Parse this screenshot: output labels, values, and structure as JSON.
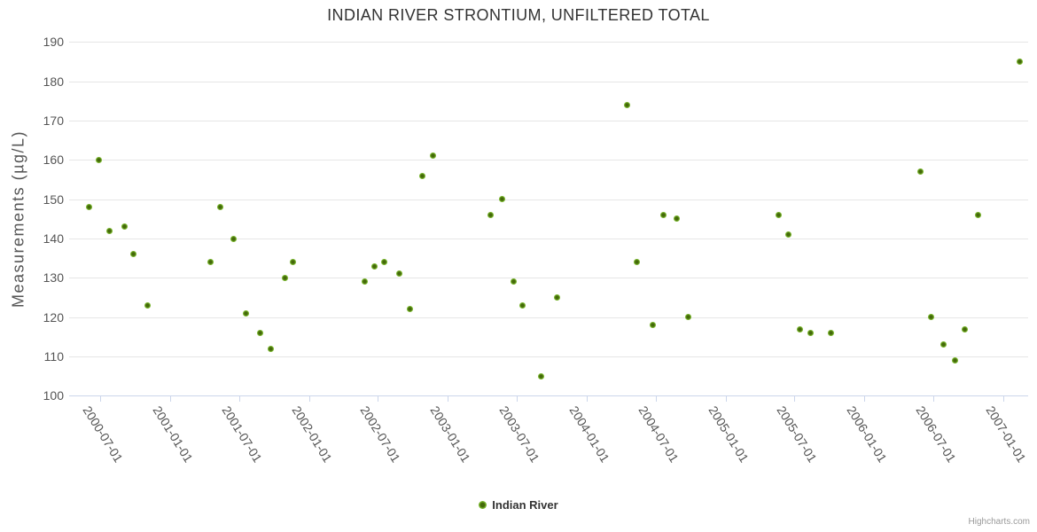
{
  "chart": {
    "credits": "Highcharts.com"
  },
  "colors": {
    "series_green": "#76b22a",
    "series_green_dark": "#44690a",
    "gridline": "#e6e6e6",
    "axis_line": "#ccd6eb",
    "tick_label": "#545454",
    "title_text": "#333333",
    "axis_title_text": "#555555",
    "credits_text": "#999999"
  },
  "chart_data": {
    "type": "scatter",
    "title": "INDIAN RIVER STRONTIUM, UNFILTERED TOTAL",
    "xlabel": "",
    "ylabel": "Measurements (µg/L)",
    "ylim": [
      100,
      190
    ],
    "y_ticks": [
      100,
      110,
      120,
      130,
      140,
      150,
      160,
      170,
      180,
      190
    ],
    "x_tick_labels": [
      "2000-07-01",
      "2001-01-01",
      "2001-07-01",
      "2002-01-01",
      "2002-07-01",
      "2003-01-01",
      "2003-07-01",
      "2004-01-01",
      "2004-07-01",
      "2005-01-01",
      "2005-07-01",
      "2006-01-01",
      "2006-07-01",
      "2007-01-01"
    ],
    "grid": "horizontal",
    "legend_position": "bottom-center",
    "series": [
      {
        "name": "Indian River",
        "color": "#76b22a",
        "points": [
          {
            "date": "2000-06-01",
            "value": 148
          },
          {
            "date": "2000-06-27",
            "value": 160
          },
          {
            "date": "2000-07-25",
            "value": 142
          },
          {
            "date": "2000-09-01",
            "value": 143
          },
          {
            "date": "2000-09-25",
            "value": 136
          },
          {
            "date": "2000-11-01",
            "value": 123
          },
          {
            "date": "2001-04-17",
            "value": 134
          },
          {
            "date": "2001-05-12",
            "value": 148
          },
          {
            "date": "2001-06-17",
            "value": 140
          },
          {
            "date": "2001-07-19",
            "value": 121
          },
          {
            "date": "2001-08-26",
            "value": 116
          },
          {
            "date": "2001-09-23",
            "value": 112
          },
          {
            "date": "2001-10-29",
            "value": 130
          },
          {
            "date": "2001-11-19",
            "value": 134
          },
          {
            "date": "2002-05-26",
            "value": 129
          },
          {
            "date": "2002-06-21",
            "value": 133
          },
          {
            "date": "2002-07-18",
            "value": 134
          },
          {
            "date": "2002-08-25",
            "value": 131
          },
          {
            "date": "2002-09-23",
            "value": 122
          },
          {
            "date": "2002-10-26",
            "value": 156
          },
          {
            "date": "2002-11-23",
            "value": 161
          },
          {
            "date": "2003-04-23",
            "value": 146
          },
          {
            "date": "2003-05-24",
            "value": 150
          },
          {
            "date": "2003-06-22",
            "value": 129
          },
          {
            "date": "2003-07-17",
            "value": 123
          },
          {
            "date": "2003-09-04",
            "value": 105
          },
          {
            "date": "2003-10-16",
            "value": 125
          },
          {
            "date": "2004-04-17",
            "value": 174
          },
          {
            "date": "2004-05-11",
            "value": 134
          },
          {
            "date": "2004-06-22",
            "value": 118
          },
          {
            "date": "2004-07-20",
            "value": 146
          },
          {
            "date": "2004-08-24",
            "value": 145
          },
          {
            "date": "2004-09-24",
            "value": 120
          },
          {
            "date": "2005-05-21",
            "value": 146
          },
          {
            "date": "2005-06-14",
            "value": 141
          },
          {
            "date": "2005-07-15",
            "value": 117
          },
          {
            "date": "2005-08-13",
            "value": 116
          },
          {
            "date": "2005-10-04",
            "value": 116
          },
          {
            "date": "2006-05-28",
            "value": 157
          },
          {
            "date": "2006-06-25",
            "value": 120
          },
          {
            "date": "2006-07-27",
            "value": 113
          },
          {
            "date": "2006-08-28",
            "value": 109
          },
          {
            "date": "2006-09-23",
            "value": 117
          },
          {
            "date": "2006-10-28",
            "value": 146
          },
          {
            "date": "2007-02-13",
            "value": 185
          }
        ]
      }
    ]
  }
}
